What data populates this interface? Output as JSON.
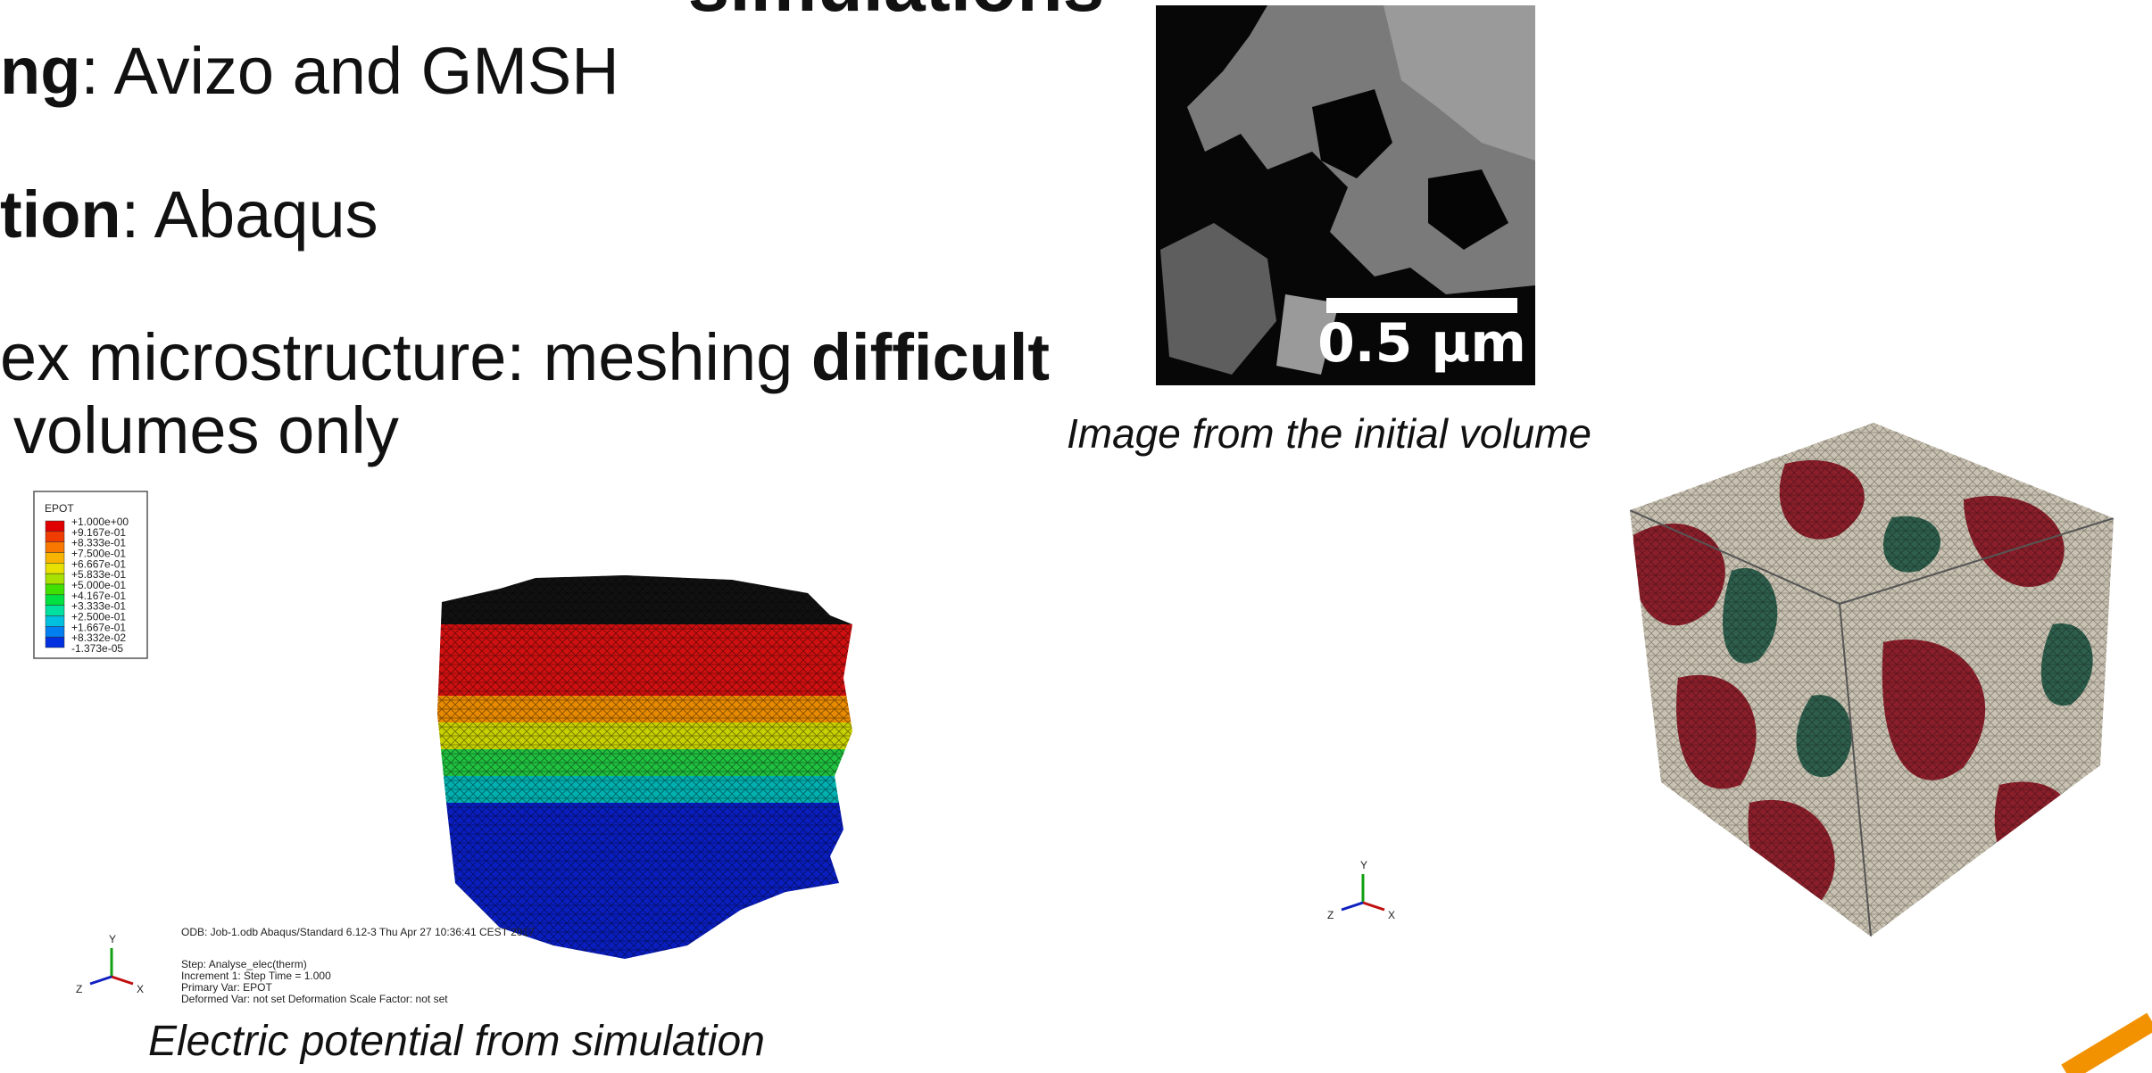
{
  "title": "simulations",
  "bullets": [
    [
      {
        "text": "ng",
        "bold": true
      },
      {
        "text": ": Avizo and GMSH",
        "bold": false
      }
    ],
    [
      {
        "text": "tion",
        "bold": true
      },
      {
        "text": ": Abaqus",
        "bold": false
      }
    ],
    [
      {
        "text": "ex microstructure: meshing ",
        "bold": false
      },
      {
        "text": "difficult",
        "bold": true
      }
    ],
    [
      {
        "text": "volumes only",
        "bold": false
      }
    ]
  ],
  "micrograph": {
    "scale_bar": "0.5 µm",
    "caption": "Image from the initial volume"
  },
  "simulation": {
    "legend_title": "EPOT",
    "legend_labels": [
      "+1.000e+00",
      "+9.167e-01",
      "+8.333e-01",
      "+7.500e-01",
      "+6.667e-01",
      "+5.833e-01",
      "+5.000e-01",
      "+4.167e-01",
      "+3.333e-01",
      "+2.500e-01",
      "+1.667e-01",
      "+8.332e-02",
      "-1.373e-05"
    ],
    "legend_colors": [
      "#e00000",
      "#f03c00",
      "#f87800",
      "#f8b400",
      "#e8e000",
      "#a8e000",
      "#40e000",
      "#00e040",
      "#00e0a0",
      "#00c0e0",
      "#0080f0",
      "#0030e0"
    ],
    "info_header": "ODB: Job-1.odb    Abaqus/Standard 6.12-3    Thu Apr 27 10:36:41 CEST 2017",
    "info_lines": [
      "Step: Analyse_elec(therm)",
      "Increment      1: Step Time =    1.000",
      "Primary Var: EPOT",
      "Deformed Var: not set   Deformation Scale Factor: not set"
    ],
    "caption": "Electric potential from simulation"
  },
  "triad": {
    "y": "Y",
    "z": "Z",
    "x": "X"
  }
}
